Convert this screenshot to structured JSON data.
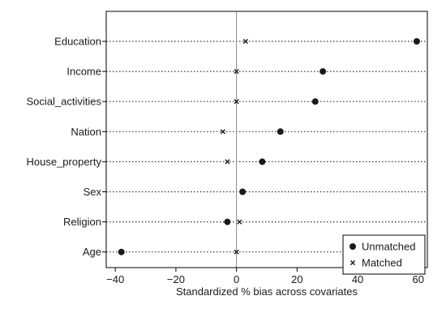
{
  "chart_data": {
    "type": "scatter",
    "title": "",
    "xlabel": "Standardized % bias across covariates",
    "ylabel": "",
    "xlim": [
      -43,
      63
    ],
    "xticks": [
      -40,
      -20,
      0,
      20,
      40,
      60
    ],
    "xtick_labels": [
      "−40",
      "−20",
      "0",
      "20",
      "40",
      "60"
    ],
    "categories": [
      "Education",
      "Income",
      "Social_activities",
      "Nation",
      "House_property",
      "Sex",
      "Religion",
      "Age"
    ],
    "series": [
      {
        "name": "Unmatched",
        "marker": "filled-circle",
        "values": [
          59.5,
          28.5,
          26.0,
          14.5,
          8.5,
          2.0,
          -3.0,
          -38.0
        ]
      },
      {
        "name": "Matched",
        "marker": "x",
        "values": [
          3.0,
          0.0,
          0.0,
          -4.5,
          -3.0,
          2.0,
          1.0,
          0.0
        ]
      }
    ],
    "reference_line_x": 0,
    "grid": "dotted horizontal lines per category",
    "legend_position": "bottom-right",
    "colors": {
      "marker": "#1a1a1a",
      "frame": "#000000",
      "reference_line": "#888888",
      "grid": "#333333",
      "background": "#ffffff"
    }
  }
}
